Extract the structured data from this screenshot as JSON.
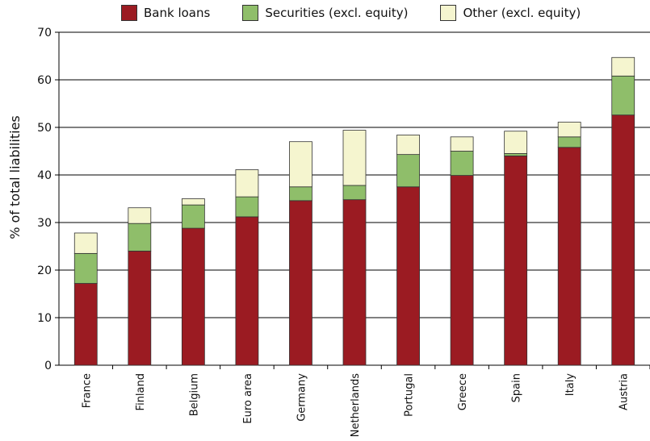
{
  "chart_data": {
    "type": "bar",
    "stacked": true,
    "categories": [
      "France",
      "Finland",
      "Belgium",
      "Euro area",
      "Germany",
      "Netherlands",
      "Portugal",
      "Greece",
      "Spain",
      "Italy",
      "Austria"
    ],
    "series": [
      {
        "name": "Bank loans",
        "color": "#9b1b22",
        "values": [
          17.2,
          24.0,
          28.8,
          31.2,
          34.6,
          34.8,
          37.5,
          39.9,
          44.0,
          45.8,
          52.6
        ]
      },
      {
        "name": "Securities (excl. equity)",
        "color": "#8fbe6a",
        "values": [
          6.3,
          5.8,
          4.9,
          4.2,
          2.9,
          3.0,
          6.8,
          5.1,
          0.5,
          2.2,
          8.2
        ]
      },
      {
        "name": "Other (excl. equity)",
        "color": "#f5f5cf",
        "values": [
          4.3,
          3.3,
          1.3,
          5.7,
          9.5,
          11.6,
          4.1,
          3.0,
          4.7,
          3.1,
          3.9
        ]
      }
    ],
    "ylabel": "% of total liabilities",
    "xlabel": "",
    "ylim": [
      0,
      70
    ],
    "yticks": [
      0,
      10,
      20,
      30,
      40,
      50,
      60,
      70
    ],
    "grid": true,
    "legend_position": "top"
  }
}
